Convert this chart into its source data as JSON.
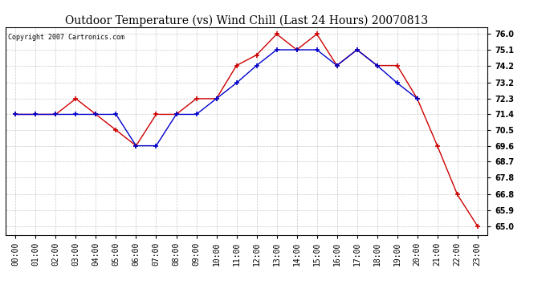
{
  "title": "Outdoor Temperature (vs) Wind Chill (Last 24 Hours) 20070813",
  "copyright": "Copyright 2007 Cartronics.com",
  "hours": [
    "00:00",
    "01:00",
    "02:00",
    "03:00",
    "04:00",
    "05:00",
    "06:00",
    "07:00",
    "08:00",
    "09:00",
    "10:00",
    "11:00",
    "12:00",
    "13:00",
    "14:00",
    "15:00",
    "16:00",
    "17:00",
    "18:00",
    "19:00",
    "20:00",
    "21:00",
    "22:00",
    "23:00"
  ],
  "temp": [
    71.4,
    71.4,
    71.4,
    72.3,
    71.4,
    70.5,
    69.6,
    71.4,
    71.4,
    72.3,
    72.3,
    74.2,
    74.8,
    76.0,
    75.1,
    76.0,
    74.2,
    75.1,
    74.2,
    74.2,
    72.3,
    69.6,
    66.8,
    65.0
  ],
  "windchill": [
    71.4,
    71.4,
    71.4,
    71.4,
    71.4,
    71.4,
    69.6,
    69.6,
    71.4,
    71.4,
    72.3,
    73.2,
    74.2,
    75.1,
    75.1,
    75.1,
    74.2,
    75.1,
    74.2,
    73.2,
    72.3,
    null,
    null,
    null
  ],
  "yticks": [
    65.0,
    65.9,
    66.8,
    67.8,
    68.7,
    69.6,
    70.5,
    71.4,
    72.3,
    73.2,
    74.2,
    75.1,
    76.0
  ],
  "ymin": 64.5,
  "ymax": 76.4,
  "temp_color": "#cc0000",
  "windchill_color": "#0000cc",
  "bg_color": "#ffffff",
  "grid_color": "#bbbbbb",
  "title_fontsize": 10,
  "copyright_fontsize": 6,
  "tick_fontsize": 7,
  "ytick_fontsize": 7
}
